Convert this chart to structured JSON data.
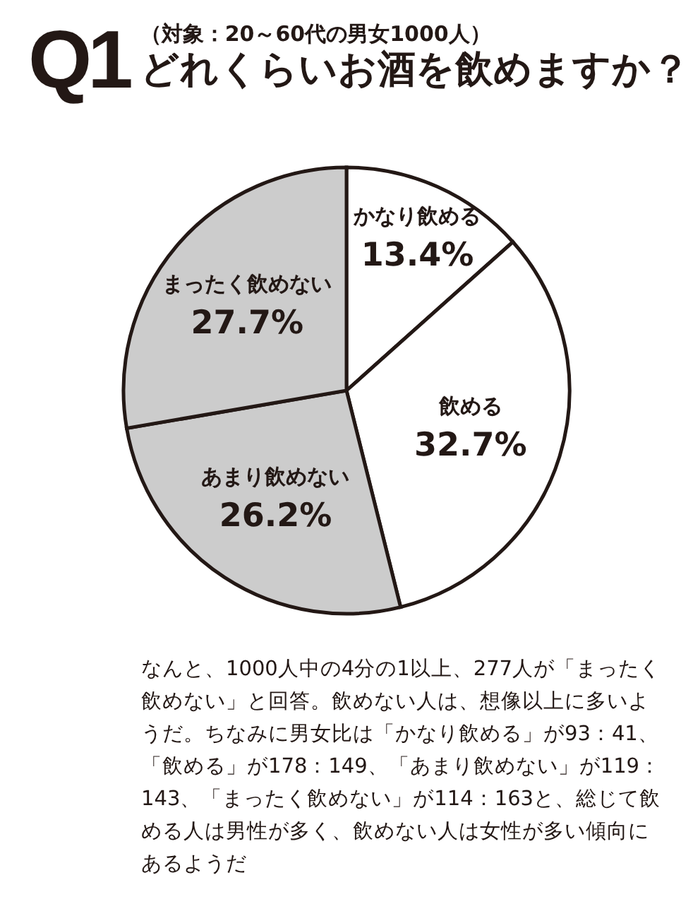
{
  "chart_data": {
    "type": "pie",
    "title": "どれくらいお酒を飲めますか？",
    "subtitle": "（対象：20～60代の男女1000人）",
    "categories": [
      "かなり飲める",
      "飲める",
      "あまり飲めない",
      "まったく飲めない"
    ],
    "values": [
      13.4,
      32.7,
      26.2,
      27.7
    ],
    "colors": [
      "#ffffff",
      "#ffffff",
      "#cccccc",
      "#cccccc"
    ],
    "value_labels": [
      "13.4%",
      "32.7%",
      "26.2%",
      "27.7%"
    ],
    "annotations": [
      "Q1",
      "なんと、1000人中の4分の1以上、277人が「まったく飲めない」と回答。飲めない人は、想像以上に多いようだ。ちなみに男女比は「かなり飲める」が93：41、「飲める」が178：149、「あまり飲めない」が119：143、「まったく飲めない」が114：163と、総じて飲める人は男性が多く、飲めない人は女性が多い傾向にあるようだ"
    ]
  }
}
